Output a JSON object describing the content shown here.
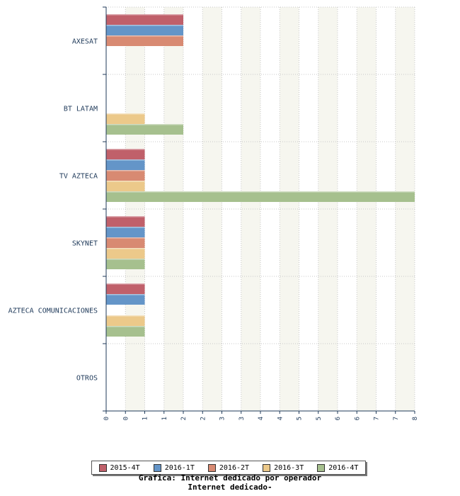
{
  "chart_data": {
    "type": "bar",
    "orientation": "horizontal",
    "categories": [
      "AXESAT",
      "BT LATAM",
      "TV AZTECA",
      "SKYNET",
      "AZTECA COMUNICACIONES",
      "OTROS"
    ],
    "series": [
      {
        "name": "2015-4T",
        "color": "#c0606a",
        "values": [
          2,
          0,
          1,
          1,
          1,
          0
        ]
      },
      {
        "name": "2016-1T",
        "color": "#6495c8",
        "values": [
          2,
          0,
          1,
          1,
          1,
          0
        ]
      },
      {
        "name": "2016-2T",
        "color": "#d88a72",
        "values": [
          2,
          0,
          1,
          1,
          0,
          0
        ]
      },
      {
        "name": "2016-3T",
        "color": "#ecc98a",
        "values": [
          0,
          1,
          1,
          1,
          1,
          0
        ]
      },
      {
        "name": "2016-4T",
        "color": "#a6c08e",
        "values": [
          0,
          2,
          8,
          1,
          1,
          0
        ]
      }
    ],
    "x_ticks": [
      "0",
      "0",
      "1",
      "1",
      "2",
      "2",
      "3",
      "3",
      "4",
      "4",
      "5",
      "5",
      "6",
      "6",
      "7",
      "7",
      "8"
    ],
    "xlim": [
      0,
      8
    ],
    "grid": true,
    "legend_position": "bottom",
    "title": "Grafica: Internet dedicado por operador",
    "subtitle": "Internet dedicado-"
  }
}
